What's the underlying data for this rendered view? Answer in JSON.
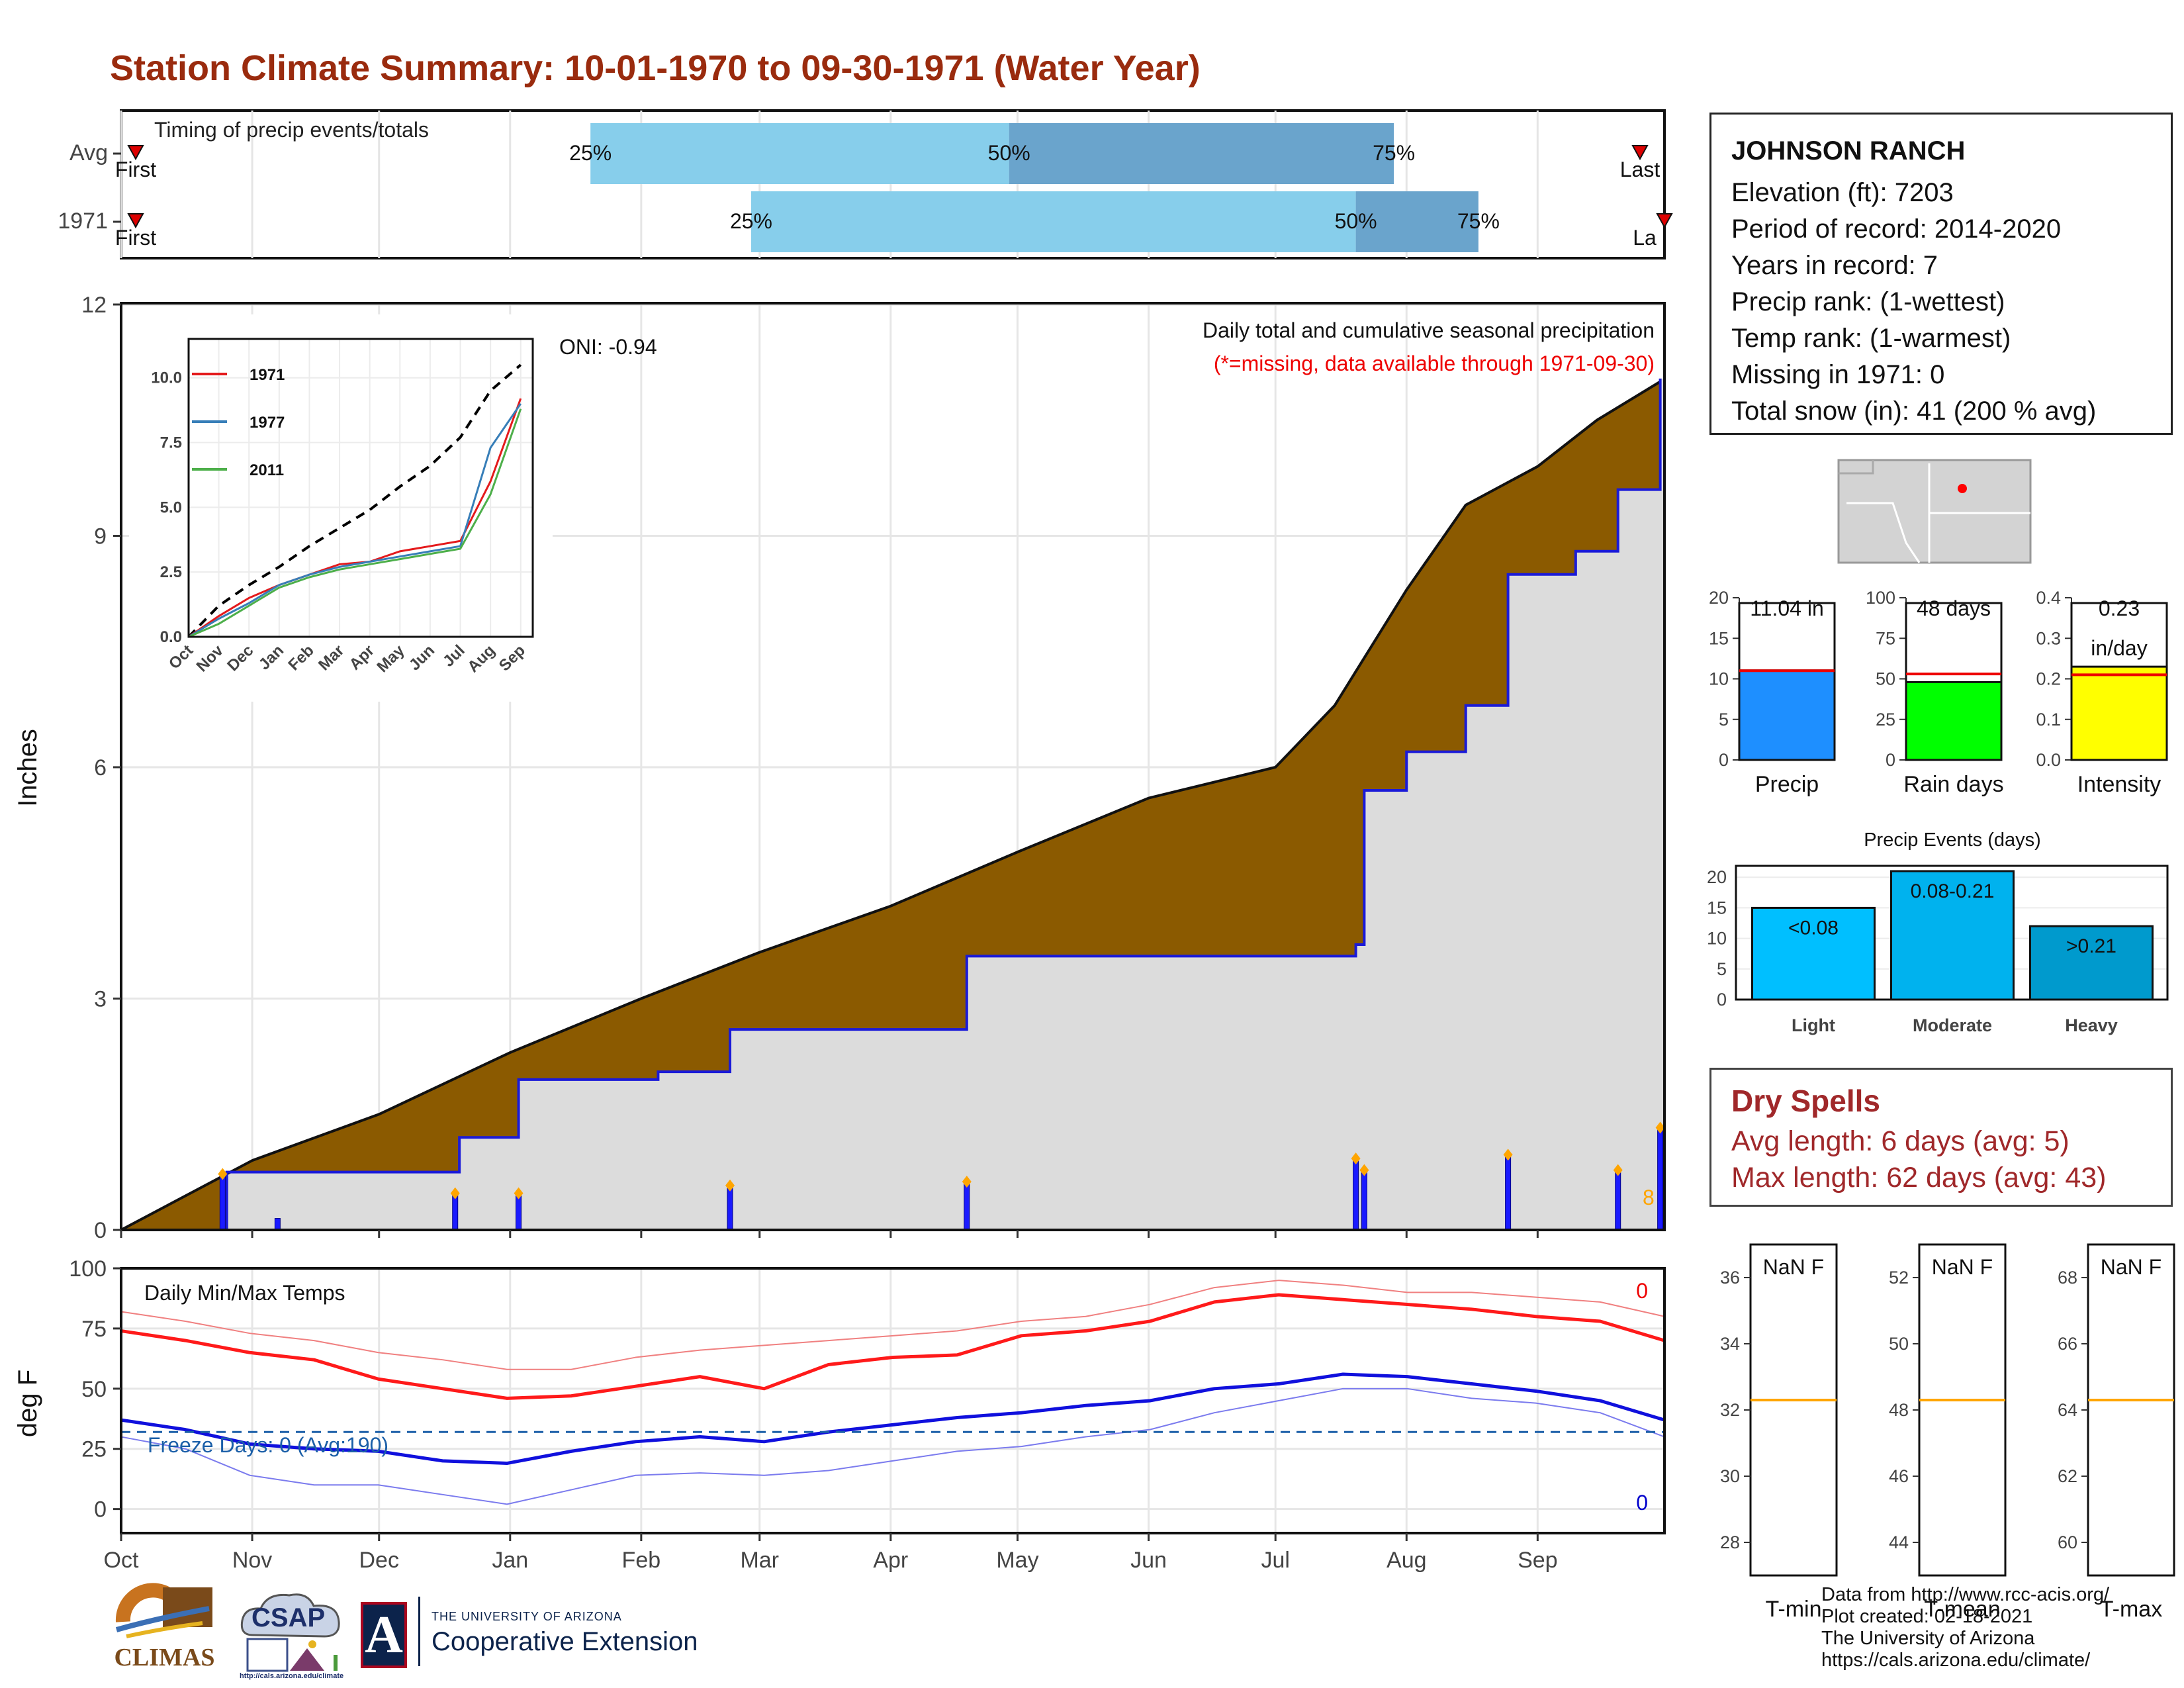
{
  "title": "Station Climate Summary: 10-01-1970 to 09-30-1971 (Water Year)",
  "timing": {
    "label": "Timing of precip events/totals",
    "rows": [
      {
        "name": "Avg",
        "first_label": "First",
        "last_label": "Last",
        "q25_label": "25%",
        "q50_label": "50%",
        "q75_label": "75%",
        "q25": "1971-01-20",
        "q50": "1971-04-29",
        "q75": "1971-07-29"
      },
      {
        "name": "1971",
        "first_label": "First",
        "last_label": "La",
        "q25_label": "25%",
        "q50_label": "50%",
        "q75_label": "75%",
        "q25": "1971-02-27",
        "q50": "1971-07-20",
        "q75": "1971-08-18"
      }
    ]
  },
  "station": {
    "name": "JOHNSON RANCH",
    "lines": [
      "Elevation (ft): 7203",
      "Period of record: 2014-2020",
      "Years in record: 7",
      "Precip rank:  (1-wettest)",
      "Temp rank:  (1-warmest)",
      "Missing in 1971: 0",
      "Total snow (in): 41 (200 % avg)"
    ]
  },
  "main_panel": {
    "ylabel": "Inches",
    "oni": "ONI: -0.94",
    "note1": "Daily total and cumulative seasonal precipitation",
    "note2": "(*=missing, data available through 1971-09-30)",
    "yticks": [
      "0",
      "3",
      "6",
      "9",
      "12"
    ],
    "end_count": "8"
  },
  "inset": {
    "legend": [
      "1971",
      "1977",
      "2011"
    ],
    "colors": [
      "#e41a1c",
      "#377eb8",
      "#4daf4a"
    ],
    "yticks": [
      "0.0",
      "2.5",
      "5.0",
      "7.5",
      "10.0"
    ],
    "xticks": [
      "Oct",
      "Nov",
      "Dec",
      "Jan",
      "Feb",
      "Mar",
      "Apr",
      "May",
      "Jun",
      "Jul",
      "Aug",
      "Sep"
    ]
  },
  "months": [
    "Oct",
    "Nov",
    "Dec",
    "Jan",
    "Feb",
    "Mar",
    "Apr",
    "May",
    "Jun",
    "Jul",
    "Aug",
    "Sep"
  ],
  "bars": [
    {
      "label": "Precip",
      "value_label": "11.04 in",
      "yticks": [
        "0",
        "5",
        "10",
        "15",
        "20"
      ],
      "color": "#1e8fff"
    },
    {
      "label": "Rain days",
      "value_label": "48 days",
      "yticks": [
        "0",
        "25",
        "50",
        "75",
        "100"
      ],
      "color": "#00ff00"
    },
    {
      "label": "Intensity",
      "value_label": "0.23",
      "value_label2": "in/day",
      "yticks": [
        "0.0",
        "0.1",
        "0.2",
        "0.3",
        "0.4"
      ],
      "color": "#ffff00"
    }
  ],
  "events": {
    "title": "Precip Events (days)",
    "yticks": [
      "0",
      "5",
      "10",
      "15",
      "20"
    ],
    "categories": [
      "Light",
      "Moderate",
      "Heavy"
    ],
    "labels": [
      "<0.08",
      "0.08-0.21",
      ">0.21"
    ]
  },
  "dry_spells": {
    "title": "Dry Spells",
    "avg": "Avg length: 6 days (avg: 5)",
    "max": "Max length: 62 days (avg: 43)"
  },
  "temp_panel": {
    "ylabel": "deg F",
    "label": "Daily Min/Max Temps",
    "freeze": "Freeze Days: 0 (Avg:190)",
    "yticks": [
      "0",
      "25",
      "50",
      "75",
      "100"
    ],
    "max_count": "0",
    "min_count": "0"
  },
  "temp_boxes": [
    {
      "label": "T-min",
      "value": "NaN F",
      "yticks": [
        "28",
        "30",
        "32",
        "34",
        "36"
      ],
      "ylim": [
        27,
        37
      ],
      "avg": 32.3
    },
    {
      "label": "T-mean",
      "value": "NaN F",
      "yticks": [
        "44",
        "46",
        "48",
        "50",
        "52"
      ],
      "ylim": [
        43,
        53
      ],
      "avg": 48.3
    },
    {
      "label": "T-max",
      "value": "NaN F",
      "yticks": [
        "60",
        "62",
        "64",
        "66",
        "68"
      ],
      "ylim": [
        59,
        69
      ],
      "avg": 64.3
    }
  ],
  "credits": [
    "Data from http://www.rcc-acis.org/",
    "Plot created: 02-18-2021",
    "The University of Arizona",
    "https://cals.arizona.edu/climate/"
  ],
  "logos": {
    "climas": "CLIMAS",
    "csap": "CSAP",
    "csap_url": "http://cals.arizona.edu/climate",
    "ua_top": "THE UNIVERSITY OF ARIZONA",
    "ua_bottom": "Cooperative Extension",
    "ua_letter": "A"
  },
  "chart_data": [
    {
      "type": "area",
      "title": "Daily total and cumulative seasonal precipitation",
      "ylabel": "Inches",
      "ylim": [
        0,
        12
      ],
      "series": [
        {
          "name": "Avg",
          "x": [
            "1970-10-01",
            "1970-11-01",
            "1970-12-01",
            "1971-01-01",
            "1971-02-01",
            "1971-03-01",
            "1971-04-01",
            "1971-05-01",
            "1971-06-01",
            "1971-07-01",
            "1971-07-15",
            "1971-08-01",
            "1971-08-15",
            "1971-09-01",
            "1971-09-15",
            "1971-09-30"
          ],
          "y": [
            0.0,
            0.9,
            1.5,
            2.3,
            3.0,
            3.6,
            4.2,
            4.9,
            5.6,
            6.0,
            6.8,
            8.3,
            9.4,
            9.9,
            10.5,
            11.0
          ]
        },
        {
          "name": "1971",
          "x": [
            "1970-10-01",
            "1970-10-25",
            "1970-10-26",
            "1970-12-20",
            "1971-01-03",
            "1971-02-05",
            "1971-02-22",
            "1971-04-19",
            "1971-07-20",
            "1971-07-22",
            "1971-08-01",
            "1971-08-15",
            "1971-08-25",
            "1971-09-10",
            "1971-09-20",
            "1971-09-30"
          ],
          "y": [
            0.0,
            0.0,
            0.75,
            1.2,
            1.95,
            2.05,
            2.6,
            3.55,
            3.7,
            5.7,
            6.2,
            6.8,
            8.5,
            8.8,
            9.6,
            11.04
          ]
        }
      ],
      "daily_totals": {
        "x": [
          "1970-10-25",
          "1970-11-07",
          "1970-12-19",
          "1971-01-03",
          "1971-02-22",
          "1971-04-19",
          "1971-07-20",
          "1971-07-22",
          "1971-08-25",
          "1971-09-20",
          "1971-09-30"
        ],
        "y": [
          0.7,
          0.15,
          0.45,
          0.45,
          0.55,
          0.6,
          0.9,
          0.75,
          0.95,
          0.75,
          1.3
        ]
      }
    },
    {
      "type": "line",
      "title": "",
      "x": [
        "Oct",
        "Nov",
        "Dec",
        "Jan",
        "Feb",
        "Mar",
        "Apr",
        "May",
        "Jun",
        "Jul",
        "Aug",
        "Sep"
      ],
      "ylim": [
        0,
        11.5
      ],
      "series": [
        {
          "name": "",
          "values": [
            0.0,
            1.2,
            2.0,
            2.7,
            3.5,
            4.2,
            4.9,
            5.8,
            6.6,
            7.7,
            9.5,
            10.5
          ]
        },
        {
          "name": "1971",
          "values": [
            0.0,
            0.8,
            1.5,
            2.0,
            2.4,
            2.8,
            2.9,
            3.3,
            3.5,
            3.7,
            6.0,
            9.2
          ]
        },
        {
          "name": "1977",
          "values": [
            0.0,
            0.7,
            1.3,
            2.0,
            2.4,
            2.7,
            2.9,
            3.1,
            3.3,
            3.5,
            7.3,
            9.0
          ]
        },
        {
          "name": "2011",
          "values": [
            0.0,
            0.5,
            1.2,
            1.9,
            2.3,
            2.6,
            2.8,
            3.0,
            3.2,
            3.4,
            5.5,
            8.8
          ]
        }
      ]
    },
    {
      "type": "bar",
      "categories": [
        "Precip",
        "Rain days",
        "Intensity"
      ],
      "values": [
        11.04,
        48,
        0.23
      ],
      "averages": [
        11.0,
        53,
        0.21
      ]
    },
    {
      "type": "bar",
      "title": "Precip Events (days)",
      "categories": [
        "Light",
        "Moderate",
        "Heavy"
      ],
      "values": [
        15,
        21,
        12
      ],
      "ylim": [
        0,
        21
      ]
    },
    {
      "type": "line",
      "title": "Daily Min/Max Temps",
      "ylabel": "deg F",
      "ylim": [
        -10,
        100
      ],
      "x": [
        "Oct 1",
        "Oct 15",
        "Nov 1",
        "Nov 15",
        "Dec 1",
        "Dec 15",
        "Jan 1",
        "Jan 15",
        "Feb 1",
        "Feb 15",
        "Mar 1",
        "Mar 15",
        "Apr 1",
        "Apr 15",
        "May 1",
        "May 15",
        "Jun 1",
        "Jun 15",
        "Jul 1",
        "Jul 15",
        "Aug 1",
        "Aug 15",
        "Sep 1",
        "Sep 15",
        "Sep 30"
      ],
      "series": [
        {
          "name": "",
          "values": [
            82,
            78,
            73,
            70,
            65,
            62,
            58,
            58,
            63,
            66,
            68,
            70,
            72,
            74,
            78,
            80,
            85,
            92,
            95,
            93,
            90,
            90,
            88,
            86,
            80
          ]
        },
        {
          "name": "",
          "values": [
            74,
            70,
            65,
            62,
            54,
            50,
            46,
            47,
            51,
            55,
            50,
            60,
            63,
            64,
            72,
            74,
            78,
            86,
            89,
            87,
            85,
            83,
            80,
            78,
            70
          ]
        },
        {
          "name": "",
          "values": [
            37,
            33,
            27,
            25,
            24,
            20,
            19,
            24,
            28,
            30,
            28,
            32,
            35,
            38,
            40,
            43,
            45,
            50,
            52,
            56,
            55,
            52,
            49,
            45,
            37
          ]
        },
        {
          "name": "",
          "values": [
            30,
            25,
            14,
            10,
            10,
            6,
            2,
            8,
            14,
            15,
            14,
            16,
            20,
            24,
            26,
            30,
            33,
            40,
            45,
            50,
            50,
            46,
            44,
            40,
            30
          ]
        }
      ],
      "freeze_threshold": 32
    },
    {
      "type": "bar",
      "categories": [
        "T-min",
        "T-mean",
        "T-max"
      ],
      "averages": [
        32.3,
        48.3,
        64.3
      ]
    }
  ]
}
